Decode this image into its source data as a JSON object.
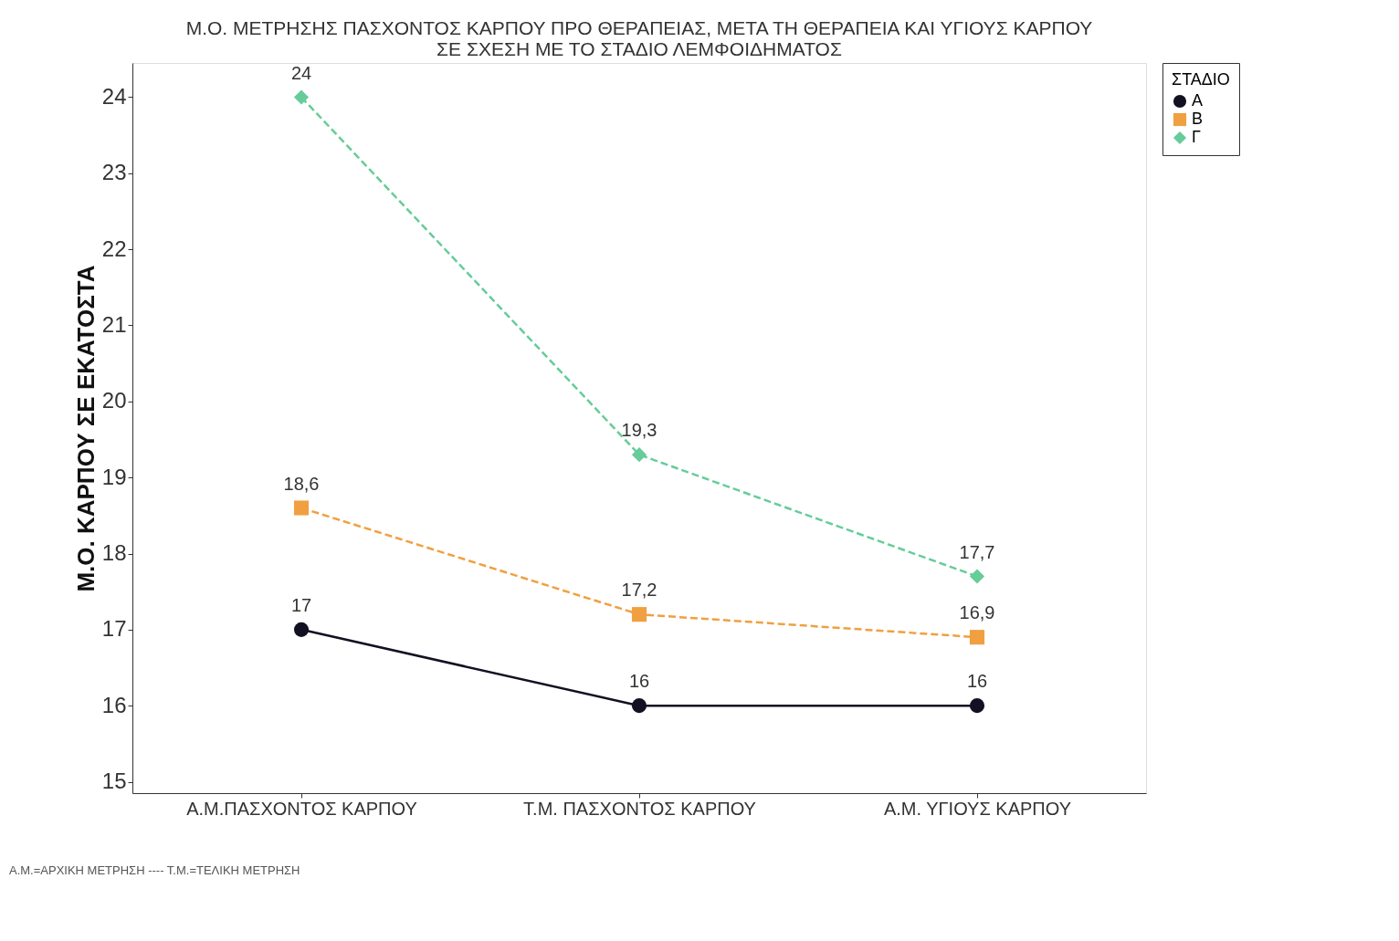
{
  "chart_data": {
    "type": "line",
    "title": [
      "Μ.Ο. ΜΕΤΡΗΣΗΣ ΠΑΣΧΟΝΤΟΣ ΚΑΡΠΟΥ ΠΡΟ ΘΕΡΑΠΕΙΑΣ, ΜΕΤΑ ΤΗ ΘΕΡΑΠΕΙΑ ΚΑΙ ΥΓΙΟΥΣ ΚΑΡΠΟΥ",
      "ΣΕ ΣΧΕΣΗ ΜΕ ΤΟ ΣΤΑΔΙΟ ΛΕΜΦΟΙΔΗΜΑΤΟΣ"
    ],
    "ylabel": "Μ.Ο. ΚΑΡΠΟΥ ΣΕ ΕΚΑΤΟΣΤΑ",
    "legend_title": "ΣΤΑΔΙΟ",
    "annotations": [
      "Α.Μ.=ΑΡΧΙΚΗ ΜΕΤΡΗΣΗ ---- Τ.Μ.=ΤΕΛΙΚΗ ΜΕΤΡΗΣΗ"
    ],
    "categories": [
      "Α.Μ.ΠΑΣΧΟΝΤΟΣ ΚΑΡΠΟΥ",
      "Τ.Μ. ΠΑΣΧΟΝΤΟΣ ΚΑΡΠΟΥ",
      "Α.Μ. ΥΓΙΟΥΣ ΚΑΡΠΟΥ"
    ],
    "series": [
      {
        "name": "Α",
        "color": "#111122",
        "values": [
          17,
          16,
          16
        ],
        "value_labels": [
          "17",
          "16",
          "16"
        ],
        "marker": "circle",
        "line_style": "solid"
      },
      {
        "name": "Β",
        "color": "#f0a040",
        "values": [
          18.6,
          17.2,
          16.9
        ],
        "value_labels": [
          "18,6",
          "17,2",
          "16,9"
        ],
        "marker": "square",
        "line_style": "dashed"
      },
      {
        "name": "Γ",
        "color": "#66cc99",
        "values": [
          24,
          19.3,
          17.7
        ],
        "value_labels": [
          "24",
          "19,3",
          "17,7"
        ],
        "marker": "diamond",
        "line_style": "dashed"
      }
    ],
    "ylim": [
      14.85,
      24.45
    ],
    "yticks": [
      15,
      16,
      17,
      18,
      19,
      20,
      21,
      22,
      23,
      24
    ],
    "grid": false,
    "legend": "top right"
  }
}
